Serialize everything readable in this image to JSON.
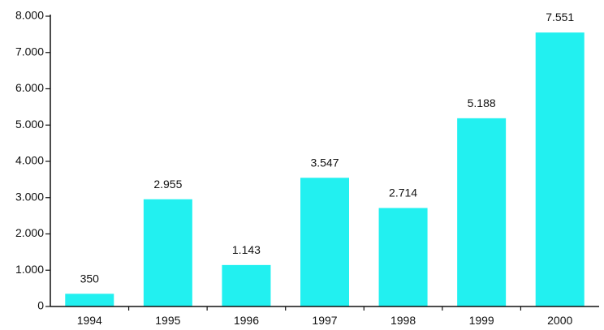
{
  "chart_data": {
    "type": "bar",
    "title": "",
    "xlabel": "",
    "ylabel": "",
    "categories": [
      "1994",
      "1995",
      "1996",
      "1997",
      "1998",
      "1999",
      "2000"
    ],
    "values": [
      350,
      2955,
      1143,
      3547,
      2714,
      5188,
      7551
    ],
    "value_labels": [
      "350",
      "2.955",
      "1.143",
      "3.547",
      "2.714",
      "5.188",
      "7.551"
    ],
    "ylim": [
      0,
      8000
    ],
    "yticks": [
      0,
      1000,
      2000,
      3000,
      4000,
      5000,
      6000,
      7000,
      8000
    ],
    "ytick_labels": [
      "0",
      "1.000",
      "2.000",
      "3.000",
      "4.000",
      "5.000",
      "6.000",
      "7.000",
      "8.000"
    ],
    "grid": false,
    "legend": "none",
    "bar_color": "#22f0f0",
    "axis_color": "#111111"
  }
}
